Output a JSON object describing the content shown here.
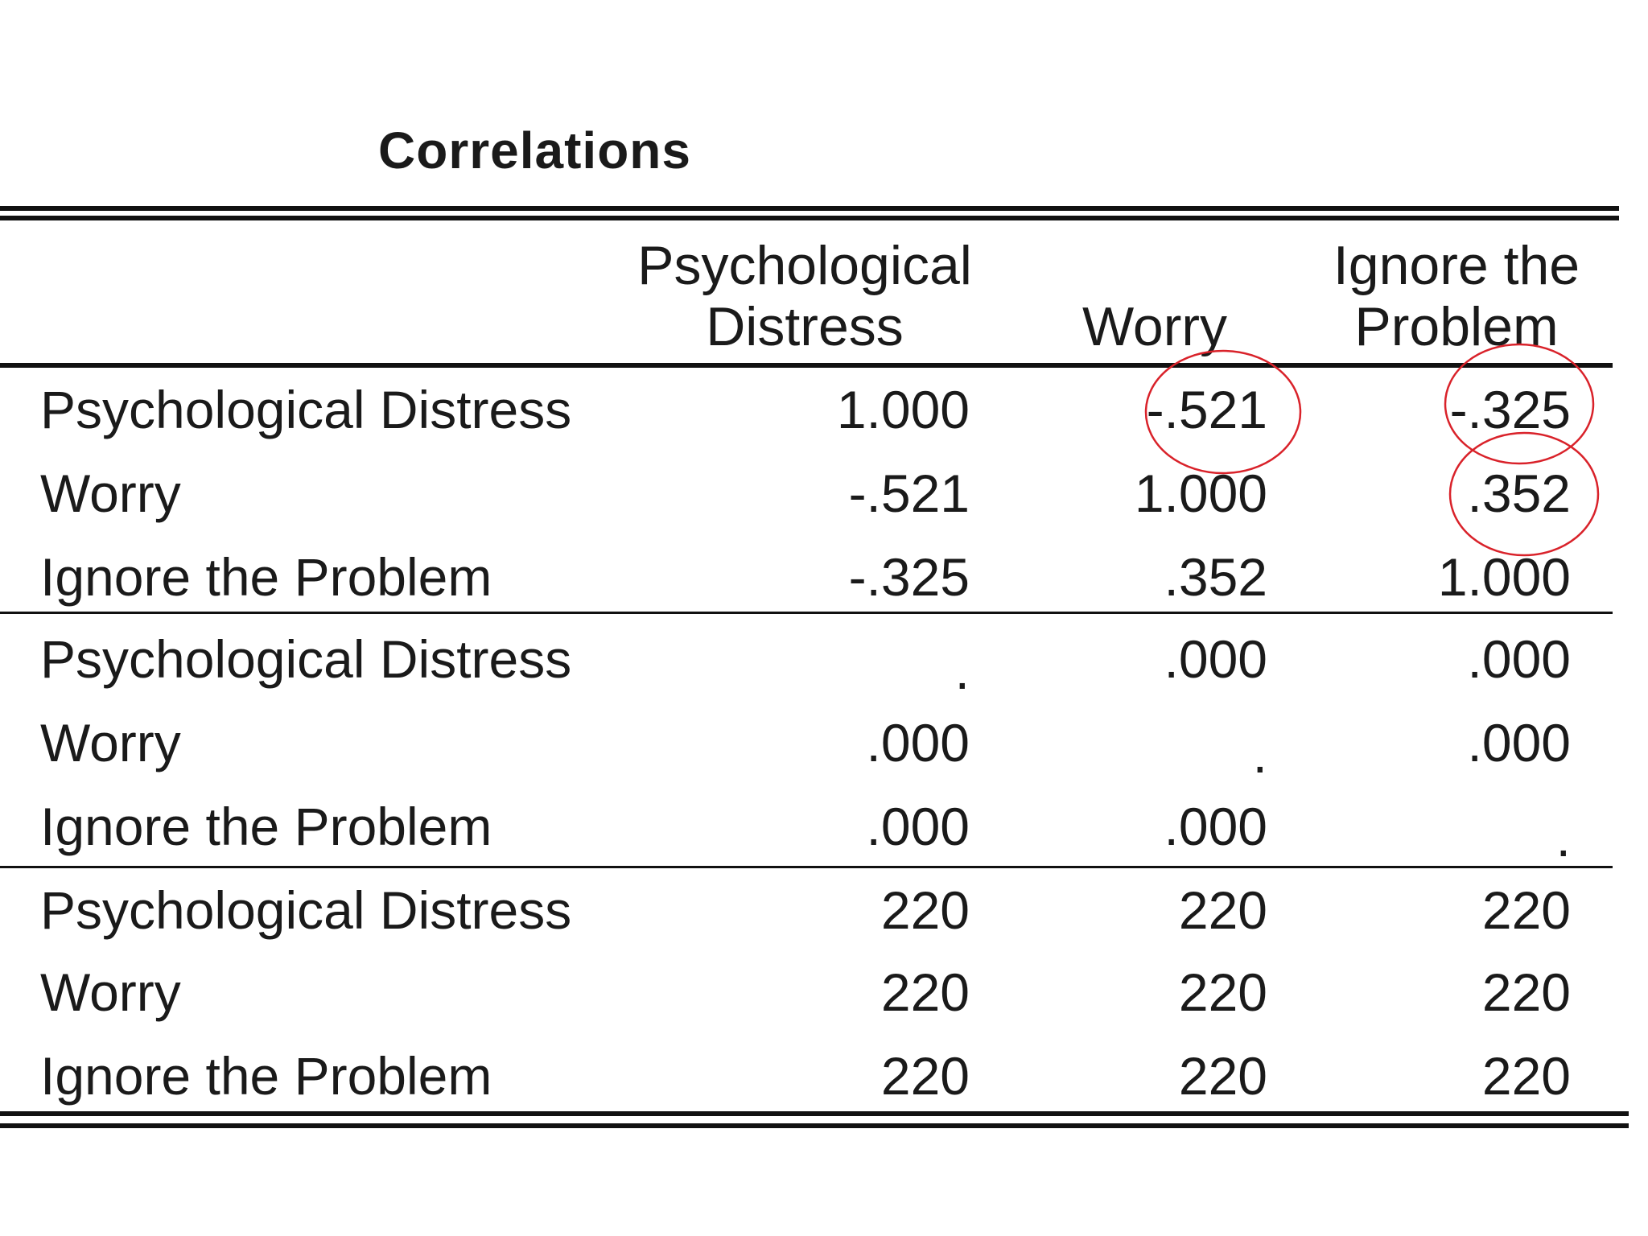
{
  "table": {
    "title": "Correlations",
    "columns": [
      {
        "line1": "Psychological",
        "line2": "Distress"
      },
      {
        "line1": "",
        "line2": "Worry"
      },
      {
        "line1": "Ignore the",
        "line2": "Problem"
      }
    ],
    "rows": [
      {
        "label": "Psychological Distress",
        "values": [
          "1.000",
          "-.521",
          "-.325"
        ]
      },
      {
        "label": "Worry",
        "values": [
          "-.521",
          "1.000",
          ".352"
        ]
      },
      {
        "label": "Ignore the Problem",
        "values": [
          "-.325",
          ".352",
          "1.000"
        ]
      },
      {
        "label": "Psychological Distress",
        "values": [
          ".",
          ".000",
          ".000"
        ]
      },
      {
        "label": "Worry",
        "values": [
          ".000",
          ".",
          ".000"
        ]
      },
      {
        "label": "Ignore the Problem",
        "values": [
          ".000",
          ".000",
          "."
        ]
      },
      {
        "label": "Psychological Distress",
        "values": [
          "220",
          "220",
          "220"
        ]
      },
      {
        "label": "Worry",
        "values": [
          "220",
          "220",
          "220"
        ]
      },
      {
        "label": "Ignore the Problem",
        "values": [
          "220",
          "220",
          "220"
        ]
      }
    ]
  },
  "annotation_color": "#d9222a"
}
